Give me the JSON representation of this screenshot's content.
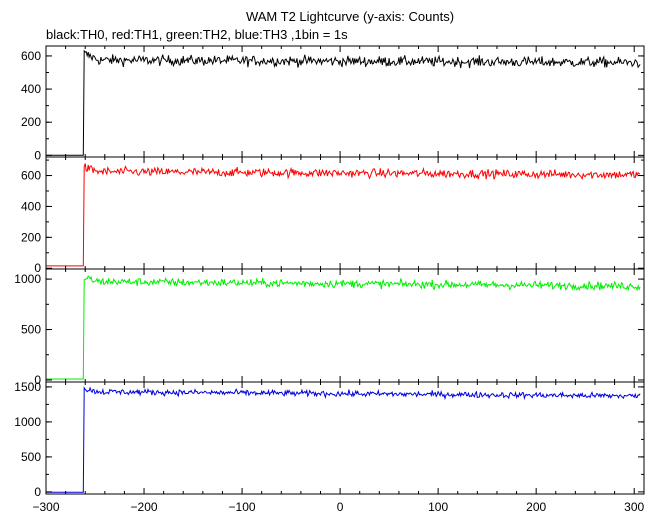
{
  "chart_data": {
    "type": "line",
    "title": "WAM T2 Lightcurve (y-axis: Counts)",
    "subtitle": "black:TH0, red:TH1, green:TH2, blue:TH3 ,1bin = 1s",
    "x_range": [
      -300,
      310
    ],
    "x_ticks": [
      -300,
      -200,
      -100,
      0,
      100,
      200,
      300
    ],
    "trigger_time": -261,
    "panels": [
      {
        "name": "TH0",
        "color": "#000000",
        "pre_level": 0,
        "peak": 615,
        "post_level": 575,
        "end_level": 560,
        "noise": 22,
        "ylim": [
          -10,
          660
        ],
        "yticks": [
          0,
          200,
          400,
          600
        ]
      },
      {
        "name": "TH1",
        "color": "#ff0000",
        "pre_level": 15,
        "peak": 650,
        "post_level": 625,
        "end_level": 605,
        "noise": 20,
        "ylim": [
          -5,
          720
        ],
        "yticks": [
          0,
          200,
          400,
          600
        ]
      },
      {
        "name": "TH2",
        "color": "#00ee00",
        "pre_level": 10,
        "peak": 1010,
        "post_level": 975,
        "end_level": 930,
        "noise": 28,
        "ylim": [
          -20,
          1100
        ],
        "yticks": [
          0,
          500,
          1000
        ]
      },
      {
        "name": "TH3",
        "color": "#0000dd",
        "pre_level": -5,
        "peak": 1470,
        "post_level": 1430,
        "end_level": 1370,
        "noise": 30,
        "ylim": [
          -30,
          1570
        ],
        "yticks": [
          0,
          500,
          1000,
          1500
        ]
      }
    ]
  }
}
